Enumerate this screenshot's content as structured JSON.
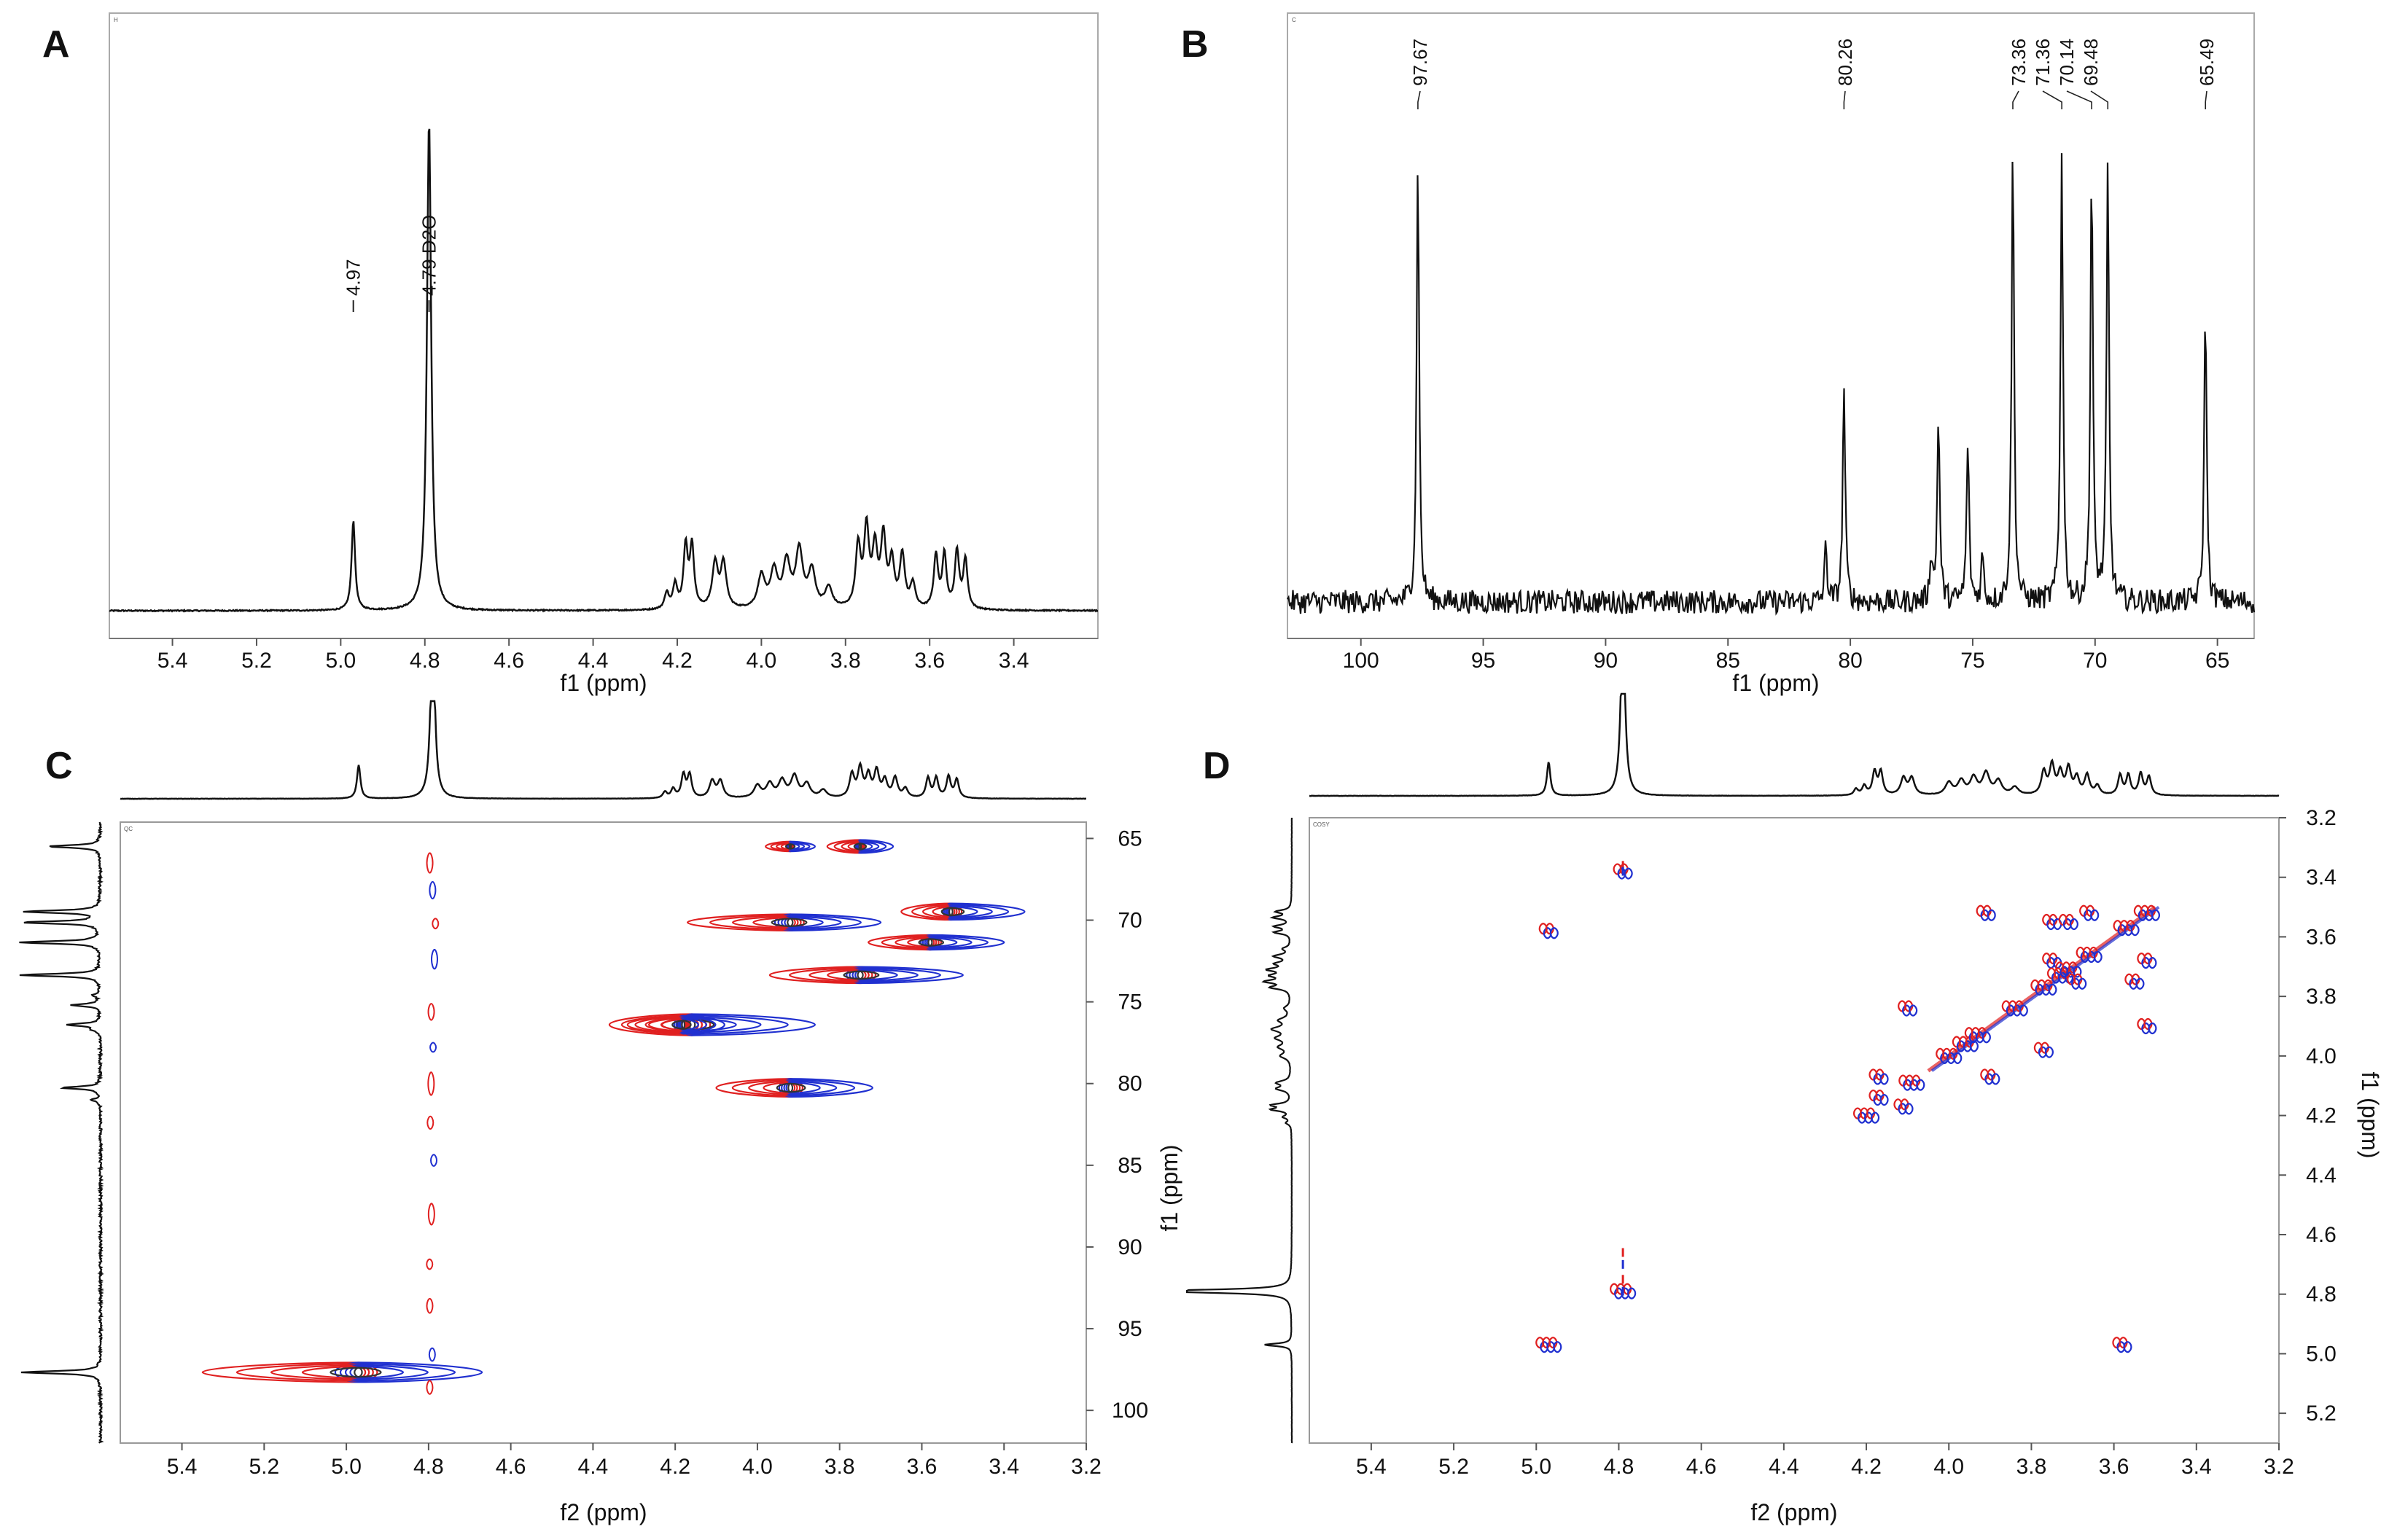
{
  "colors": {
    "positive": "#e02020",
    "negative": "#2030d0",
    "trace": "#111111"
  },
  "chart_data": [
    {
      "panel": "A",
      "type": "line",
      "title": "",
      "corner_label": "H",
      "xlabel": "f1 (ppm)",
      "xlim": [
        5.55,
        3.2
      ],
      "x_ticks": [
        5.4,
        5.2,
        5.0,
        4.8,
        4.6,
        4.4,
        4.2,
        4.0,
        3.8,
        3.6,
        3.4
      ],
      "x_tick_labels": [
        "5.4",
        "5.2",
        "5.0",
        "4.8",
        "4.6",
        "4.4",
        "4.2",
        "4.0",
        "3.8",
        "3.6",
        "3.4"
      ],
      "peaks": [
        {
          "x": 4.97,
          "y": 0.22,
          "w": 0.005
        },
        {
          "x": 4.79,
          "y": 1.2,
          "w": 0.006
        },
        {
          "x": 4.225,
          "y": 0.04,
          "w": 0.006
        },
        {
          "x": 4.205,
          "y": 0.06,
          "w": 0.006
        },
        {
          "x": 4.18,
          "y": 0.15,
          "w": 0.006
        },
        {
          "x": 4.165,
          "y": 0.15,
          "w": 0.006
        },
        {
          "x": 4.11,
          "y": 0.11,
          "w": 0.008
        },
        {
          "x": 4.09,
          "y": 0.11,
          "w": 0.008
        },
        {
          "x": 4.0,
          "y": 0.08,
          "w": 0.01
        },
        {
          "x": 3.97,
          "y": 0.09,
          "w": 0.01
        },
        {
          "x": 3.94,
          "y": 0.11,
          "w": 0.01
        },
        {
          "x": 3.91,
          "y": 0.14,
          "w": 0.01
        },
        {
          "x": 3.88,
          "y": 0.09,
          "w": 0.01
        },
        {
          "x": 3.84,
          "y": 0.05,
          "w": 0.01
        },
        {
          "x": 3.77,
          "y": 0.15,
          "w": 0.007
        },
        {
          "x": 3.75,
          "y": 0.19,
          "w": 0.007
        },
        {
          "x": 3.73,
          "y": 0.14,
          "w": 0.007
        },
        {
          "x": 3.71,
          "y": 0.17,
          "w": 0.007
        },
        {
          "x": 3.69,
          "y": 0.11,
          "w": 0.007
        },
        {
          "x": 3.665,
          "y": 0.13,
          "w": 0.007
        },
        {
          "x": 3.64,
          "y": 0.06,
          "w": 0.007
        },
        {
          "x": 3.585,
          "y": 0.13,
          "w": 0.006
        },
        {
          "x": 3.565,
          "y": 0.13,
          "w": 0.006
        },
        {
          "x": 3.535,
          "y": 0.14,
          "w": 0.006
        },
        {
          "x": 3.515,
          "y": 0.12,
          "w": 0.006
        }
      ],
      "annotations": [
        {
          "x": 4.97,
          "text": "4.97"
        },
        {
          "x": 4.79,
          "text": "4.79 D2O"
        }
      ]
    },
    {
      "panel": "B",
      "type": "line",
      "corner_label": "C",
      "xlabel": "f1 (ppm)",
      "xlim": [
        103,
        63.5
      ],
      "x_ticks": [
        100,
        95,
        90,
        85,
        80,
        75,
        70,
        65
      ],
      "x_tick_labels": [
        "100",
        "95",
        "90",
        "85",
        "80",
        "75",
        "70",
        "65"
      ],
      "peaks": [
        {
          "x": 97.67,
          "y": 0.95
        },
        {
          "x": 81.0,
          "y": 0.12
        },
        {
          "x": 80.26,
          "y": 0.46
        },
        {
          "x": 76.7,
          "y": 0.1
        },
        {
          "x": 76.4,
          "y": 0.4
        },
        {
          "x": 75.2,
          "y": 0.34
        },
        {
          "x": 74.6,
          "y": 0.1
        },
        {
          "x": 73.36,
          "y": 0.97
        },
        {
          "x": 71.36,
          "y": 0.96
        },
        {
          "x": 70.14,
          "y": 0.92
        },
        {
          "x": 69.48,
          "y": 0.92
        },
        {
          "x": 65.49,
          "y": 0.63
        }
      ],
      "annotations": [
        {
          "x": 97.67,
          "text": "97.67"
        },
        {
          "x": 80.26,
          "text": "80.26"
        },
        {
          "x": 73.36,
          "text": "73.36"
        },
        {
          "x": 71.36,
          "text": "71.36"
        },
        {
          "x": 70.14,
          "text": "70.14"
        },
        {
          "x": 69.48,
          "text": "69.48"
        },
        {
          "x": 65.49,
          "text": "65.49"
        }
      ]
    },
    {
      "panel": "C",
      "type": "heatmap",
      "corner_label": "QC",
      "xlabel": "f2 (ppm)",
      "ylabel": "f1 (ppm)",
      "xlim": [
        5.55,
        3.2
      ],
      "ylim": [
        64,
        102
      ],
      "x_ticks": [
        5.4,
        5.2,
        5.0,
        4.8,
        4.6,
        4.4,
        4.2,
        4.0,
        3.8,
        3.6,
        3.4,
        3.2
      ],
      "x_tick_labels": [
        "5.4",
        "5.2",
        "5.0",
        "4.8",
        "4.6",
        "4.4",
        "4.2",
        "4.0",
        "3.8",
        "3.6",
        "3.4",
        "3.2"
      ],
      "y_ticks": [
        65,
        70,
        75,
        80,
        85,
        90,
        95,
        100
      ],
      "y_tick_labels": [
        "65",
        "70",
        "75",
        "80",
        "85",
        "90",
        "95",
        "100"
      ],
      "cross_peaks": [
        {
          "x": 4.97,
          "y": 97.67,
          "wl": 0.38,
          "wr": 0.3,
          "h": 1.2
        },
        {
          "x": 4.16,
          "y": 76.4,
          "wl": 0.2,
          "wr": 0.3,
          "h": 1.3
        },
        {
          "x": 4.18,
          "y": 76.4,
          "wl": 0.15,
          "wr": 0.1,
          "h": 1.1
        },
        {
          "x": 3.92,
          "y": 80.26,
          "wl": 0.18,
          "wr": 0.2,
          "h": 1.1
        },
        {
          "x": 3.92,
          "y": 70.14,
          "wl": 0.25,
          "wr": 0.22,
          "h": 1.0
        },
        {
          "x": 3.75,
          "y": 73.36,
          "wl": 0.22,
          "wr": 0.25,
          "h": 1.0
        },
        {
          "x": 3.58,
          "y": 71.36,
          "wl": 0.15,
          "wr": 0.18,
          "h": 0.9
        },
        {
          "x": 3.53,
          "y": 69.48,
          "wl": 0.12,
          "wr": 0.18,
          "h": 1.0
        },
        {
          "x": 3.75,
          "y": 65.49,
          "wl": 0.08,
          "wr": 0.08,
          "h": 0.8
        },
        {
          "x": 3.92,
          "y": 65.49,
          "wl": 0.06,
          "wr": 0.06,
          "h": 0.6
        }
      ]
    },
    {
      "panel": "D",
      "type": "heatmap",
      "corner_label": "COSY",
      "xlabel": "f2 (ppm)",
      "ylabel": "f1 (ppm)",
      "xlim": [
        5.55,
        3.2
      ],
      "ylim": [
        3.2,
        5.3
      ],
      "x_ticks": [
        5.4,
        5.2,
        5.0,
        4.8,
        4.6,
        4.4,
        4.2,
        4.0,
        3.8,
        3.6,
        3.4,
        3.2
      ],
      "x_tick_labels": [
        "5.4",
        "5.2",
        "5.0",
        "4.8",
        "4.6",
        "4.4",
        "4.2",
        "4.0",
        "3.8",
        "3.6",
        "3.4",
        "3.2"
      ],
      "y_ticks": [
        3.2,
        3.4,
        3.6,
        3.8,
        4.0,
        4.2,
        4.4,
        4.6,
        4.8,
        5.0,
        5.2
      ],
      "y_tick_labels": [
        "3.2",
        "3.4",
        "3.6",
        "3.8",
        "4.0",
        "4.2",
        "4.4",
        "4.6",
        "4.8",
        "5.0",
        "5.2"
      ],
      "cross_peaks": [
        {
          "x": 4.97,
          "y": 4.97
        },
        {
          "x": 3.58,
          "y": 4.97
        },
        {
          "x": 4.97,
          "y": 3.58
        },
        {
          "x": 4.79,
          "y": 4.79
        },
        {
          "x": 4.79,
          "y": 3.38
        },
        {
          "x": 4.2,
          "y": 4.2
        },
        {
          "x": 4.17,
          "y": 4.07
        },
        {
          "x": 4.17,
          "y": 4.14
        },
        {
          "x": 4.09,
          "y": 4.09
        },
        {
          "x": 4.1,
          "y": 3.84
        },
        {
          "x": 4.11,
          "y": 4.17
        },
        {
          "x": 4.0,
          "y": 4.0
        },
        {
          "x": 3.96,
          "y": 3.96
        },
        {
          "x": 3.93,
          "y": 3.93
        },
        {
          "x": 3.91,
          "y": 3.52
        },
        {
          "x": 3.9,
          "y": 4.07
        },
        {
          "x": 3.84,
          "y": 3.84
        },
        {
          "x": 3.77,
          "y": 3.77
        },
        {
          "x": 3.75,
          "y": 3.68
        },
        {
          "x": 3.73,
          "y": 3.73
        },
        {
          "x": 3.71,
          "y": 3.71
        },
        {
          "x": 3.69,
          "y": 3.75
        },
        {
          "x": 3.66,
          "y": 3.66
        },
        {
          "x": 3.75,
          "y": 3.55
        },
        {
          "x": 3.71,
          "y": 3.55
        },
        {
          "x": 3.66,
          "y": 3.52
        },
        {
          "x": 3.77,
          "y": 3.98
        },
        {
          "x": 3.52,
          "y": 3.52
        },
        {
          "x": 3.52,
          "y": 3.68
        },
        {
          "x": 3.52,
          "y": 3.9
        },
        {
          "x": 3.57,
          "y": 3.57
        },
        {
          "x": 3.55,
          "y": 3.75
        }
      ]
    }
  ]
}
